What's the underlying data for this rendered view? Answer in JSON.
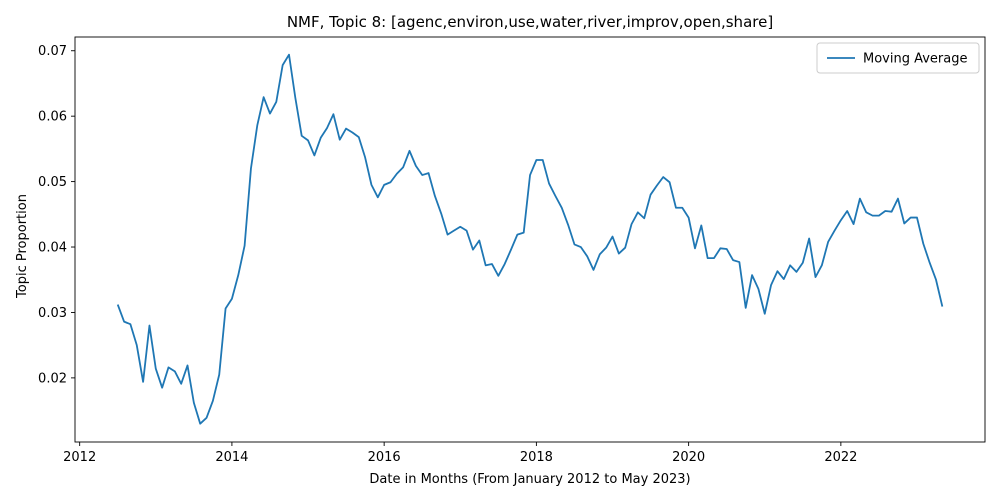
{
  "chart_data": {
    "type": "line",
    "title": "NMF, Topic 8: [agenc,environ,use,water,river,improv,open,share]",
    "xlabel": "Date in Months (From January 2012 to May 2023)",
    "ylabel": "Topic Proportion",
    "xlim": [
      "2011-12-09",
      "2023-11-23"
    ],
    "ylim": [
      0.0102,
      0.0721
    ],
    "x_ticks": [
      "2012",
      "2014",
      "2016",
      "2018",
      "2020",
      "2022"
    ],
    "y_ticks": [
      "0.02",
      "0.03",
      "0.04",
      "0.05",
      "0.06",
      "0.07"
    ],
    "grid": false,
    "legend": {
      "position": "top-right",
      "entries": [
        "Moving Average"
      ]
    },
    "series": [
      {
        "name": "Moving Average",
        "color": "#1f77b4",
        "x": [
          "2012-07-01",
          "2012-08-01",
          "2012-09-01",
          "2012-10-01",
          "2012-11-01",
          "2012-12-01",
          "2013-01-01",
          "2013-02-01",
          "2013-03-01",
          "2013-04-01",
          "2013-05-01",
          "2013-06-01",
          "2013-07-01",
          "2013-08-01",
          "2013-09-01",
          "2013-10-01",
          "2013-11-01",
          "2013-12-01",
          "2014-01-01",
          "2014-02-01",
          "2014-03-01",
          "2014-04-01",
          "2014-05-01",
          "2014-06-01",
          "2014-07-01",
          "2014-08-01",
          "2014-09-01",
          "2014-10-01",
          "2014-11-01",
          "2014-12-01",
          "2015-01-01",
          "2015-02-01",
          "2015-03-01",
          "2015-04-01",
          "2015-05-01",
          "2015-06-01",
          "2015-07-01",
          "2015-08-01",
          "2015-09-01",
          "2015-10-01",
          "2015-11-01",
          "2015-12-01",
          "2016-01-01",
          "2016-02-01",
          "2016-03-01",
          "2016-04-01",
          "2016-05-01",
          "2016-06-01",
          "2016-07-01",
          "2016-08-01",
          "2016-09-01",
          "2016-10-01",
          "2016-11-01",
          "2016-12-01",
          "2017-01-01",
          "2017-02-01",
          "2017-03-01",
          "2017-04-01",
          "2017-05-01",
          "2017-06-01",
          "2017-07-01",
          "2017-08-01",
          "2017-09-01",
          "2017-10-01",
          "2017-11-01",
          "2017-12-01",
          "2018-01-01",
          "2018-02-01",
          "2018-03-01",
          "2018-04-01",
          "2018-05-01",
          "2018-06-01",
          "2018-07-01",
          "2018-08-01",
          "2018-09-01",
          "2018-10-01",
          "2018-11-01",
          "2018-12-01",
          "2019-01-01",
          "2019-02-01",
          "2019-03-01",
          "2019-04-01",
          "2019-05-01",
          "2019-06-01",
          "2019-07-01",
          "2019-08-01",
          "2019-09-01",
          "2019-10-01",
          "2019-11-01",
          "2019-12-01",
          "2020-01-01",
          "2020-02-01",
          "2020-03-01",
          "2020-04-01",
          "2020-05-01",
          "2020-06-01",
          "2020-07-01",
          "2020-08-01",
          "2020-09-01",
          "2020-10-01",
          "2020-11-01",
          "2020-12-01",
          "2021-01-01",
          "2021-02-01",
          "2021-03-01",
          "2021-04-01",
          "2021-05-01",
          "2021-06-01",
          "2021-07-01",
          "2021-08-01",
          "2021-09-01",
          "2021-10-01",
          "2021-11-01",
          "2021-12-01",
          "2022-01-01",
          "2022-02-01",
          "2022-03-01",
          "2022-04-01",
          "2022-05-01",
          "2022-06-01",
          "2022-07-01",
          "2022-08-01",
          "2022-09-01",
          "2022-10-01",
          "2022-11-01",
          "2022-12-01",
          "2023-01-01",
          "2023-02-01",
          "2023-03-01",
          "2023-04-01",
          "2023-05-01"
        ],
        "y": [
          0.0312,
          0.0286,
          0.0282,
          0.025,
          0.0194,
          0.028,
          0.0214,
          0.0185,
          0.0216,
          0.021,
          0.0191,
          0.0219,
          0.0162,
          0.013,
          0.0139,
          0.0165,
          0.0205,
          0.0306,
          0.0321,
          0.0357,
          0.0402,
          0.052,
          0.0586,
          0.0629,
          0.0604,
          0.0622,
          0.0678,
          0.0694,
          0.0628,
          0.057,
          0.0563,
          0.054,
          0.0567,
          0.0582,
          0.0603,
          0.0564,
          0.0581,
          0.0575,
          0.0568,
          0.0537,
          0.0495,
          0.0476,
          0.0495,
          0.0499,
          0.0512,
          0.0522,
          0.0547,
          0.0524,
          0.051,
          0.0513,
          0.0478,
          0.0451,
          0.0419,
          0.0425,
          0.0431,
          0.0425,
          0.0396,
          0.041,
          0.0372,
          0.0374,
          0.0356,
          0.0374,
          0.0396,
          0.0419,
          0.0422,
          0.051,
          0.0533,
          0.0533,
          0.0497,
          0.0478,
          0.046,
          0.0434,
          0.0404,
          0.04,
          0.0386,
          0.0365,
          0.0389,
          0.0399,
          0.0416,
          0.039,
          0.0399,
          0.0435,
          0.0453,
          0.0444,
          0.048,
          0.0494,
          0.0507,
          0.0499,
          0.046,
          0.046,
          0.0445,
          0.0398,
          0.0433,
          0.0383,
          0.0383,
          0.0398,
          0.0397,
          0.038,
          0.0377,
          0.0307,
          0.0357,
          0.0336,
          0.0298,
          0.0342,
          0.0363,
          0.0351,
          0.0372,
          0.0362,
          0.0376,
          0.0413,
          0.0354,
          0.0372,
          0.0408,
          0.0425,
          0.0441,
          0.0455,
          0.0435,
          0.0474,
          0.0453,
          0.0448,
          0.0448,
          0.0455,
          0.0454,
          0.0474,
          0.0436,
          0.0445,
          0.0445,
          0.0405,
          0.0376,
          0.035,
          0.0309
        ]
      }
    ]
  }
}
